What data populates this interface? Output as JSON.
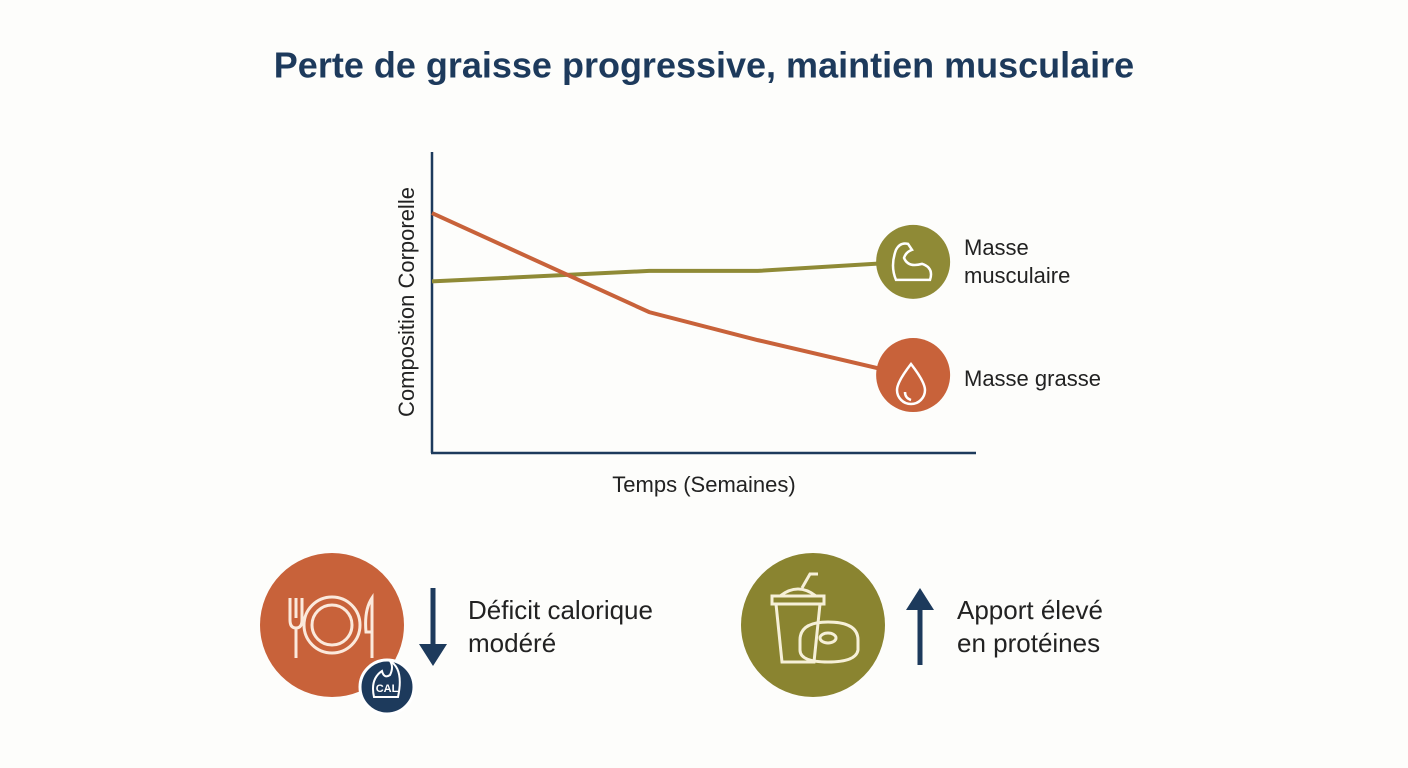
{
  "chart_data": {
    "type": "line",
    "title": "Perte de graisse progressive, maintien musculaire",
    "ylabel": "Composition Corporelle",
    "xlabel": "Temps (Semaines)",
    "x": [
      0,
      4.8,
      7.2,
      10.5
    ],
    "xlim": [
      0,
      12
    ],
    "ylim": [
      0,
      100
    ],
    "series": [
      {
        "name": "Masse musculaire",
        "color": "#8f8a36",
        "values": [
          57,
          60.5,
          60.5,
          63.5
        ]
      },
      {
        "name": "Masse grasse",
        "color": "#c8623a",
        "values": [
          79.7,
          46.8,
          37.5,
          25.9
        ]
      }
    ]
  },
  "tips": [
    {
      "lines": [
        "Déficit calorique",
        "modéré"
      ],
      "badge": "CAL",
      "color": "#c8623a"
    },
    {
      "lines": [
        "Apport élevé",
        "en protéines"
      ],
      "color": "#8a8430"
    }
  ]
}
